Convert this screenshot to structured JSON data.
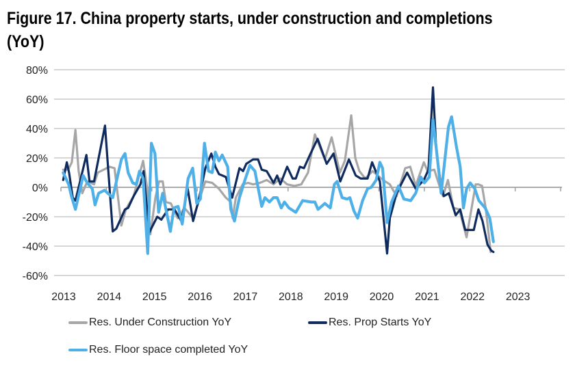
{
  "title_line1": "Figure 17. China property starts, under construction and completions",
  "title_line2": "(YoY)",
  "chart_data": {
    "type": "line",
    "title": "Figure 17. China property starts, under construction and completions (YoY)",
    "xlabel": "",
    "ylabel": "",
    "xlim": [
      2013,
      2024
    ],
    "ylim": [
      -60,
      80
    ],
    "y_ticks": [
      "80%",
      "60%",
      "40%",
      "20%",
      "0%",
      "-20%",
      "-40%",
      "-60%"
    ],
    "y_tick_values": [
      80,
      60,
      40,
      20,
      0,
      -20,
      -40,
      -60
    ],
    "x_ticks": [
      "2013",
      "2014",
      "2015",
      "2016",
      "2017",
      "2018",
      "2019",
      "2020",
      "2021",
      "2022",
      "2023"
    ],
    "x_tick_values": [
      2013,
      2014,
      2015,
      2016,
      2017,
      2018,
      2019,
      2020,
      2021,
      2022,
      2023
    ],
    "grid": "horizontal",
    "legend_position": "bottom",
    "series": [
      {
        "name": "Res. Under Construction YoY",
        "color": "#a6a6a6",
        "x": [
          2013.05,
          2013.16,
          2013.24,
          2013.32,
          2013.39,
          2013.47,
          2013.58,
          2013.73,
          2013.81,
          2014.07,
          2014.18,
          2014.33,
          2014.43,
          2014.6,
          2014.81,
          2014.9,
          2014.97,
          2015.08,
          2015.16,
          2015.24,
          2015.31,
          2015.42,
          2015.57,
          2015.72,
          2015.91,
          2016.06,
          2016.18,
          2016.33,
          2016.48,
          2016.63,
          2016.74,
          2016.78,
          2016.85,
          2017.0,
          2017.12,
          2017.23,
          2017.38,
          2017.53,
          2017.68,
          2017.83,
          2017.98,
          2018.14,
          2018.29,
          2018.44,
          2018.59,
          2018.81,
          2018.96,
          2019.14,
          2019.25,
          2019.39,
          2019.48,
          2019.57,
          2019.7,
          2019.86,
          2020.09,
          2020.24,
          2020.39,
          2020.58,
          2020.69,
          2020.81,
          2020.99,
          2021.07,
          2021.22,
          2021.29,
          2021.41,
          2021.52,
          2021.64,
          2021.77,
          2021.93,
          2022.13,
          2022.19,
          2022.27,
          2022.35,
          2022.46
        ],
        "y": [
          12,
          12,
          17,
          39,
          11,
          -4,
          4,
          2,
          10,
          14,
          13,
          -26,
          -15,
          -6,
          18,
          -1,
          -32,
          -7,
          4,
          4,
          -10,
          -11,
          -21,
          -14,
          -21,
          -7,
          4,
          3,
          -1,
          -7,
          -10,
          -21,
          -7,
          2,
          3,
          2,
          3,
          5,
          2,
          6,
          2,
          1,
          2,
          10,
          36,
          19,
          34,
          10,
          18,
          49,
          20,
          11,
          6,
          11,
          5,
          2,
          -6,
          13,
          14,
          1,
          17,
          11,
          12,
          5,
          -6,
          5,
          -14,
          -15,
          -34,
          2,
          2,
          1,
          -14,
          -44
        ]
      },
      {
        "name": "Res. Prop Starts YoY",
        "color": "#0e2a5e",
        "x": [
          2013.05,
          2013.13,
          2013.18,
          2013.26,
          2013.32,
          2013.43,
          2013.56,
          2013.63,
          2013.73,
          2013.97,
          2014.14,
          2014.22,
          2014.41,
          2014.48,
          2014.6,
          2014.75,
          2014.82,
          2014.94,
          2015.12,
          2015.21,
          2015.36,
          2015.5,
          2015.65,
          2015.79,
          2015.91,
          2016.03,
          2016.18,
          2016.31,
          2016.4,
          2016.48,
          2016.63,
          2016.77,
          2016.93,
          2017.01,
          2017.08,
          2017.23,
          2017.34,
          2017.42,
          2017.53,
          2017.68,
          2017.76,
          2017.83,
          2017.98,
          2018.1,
          2018.17,
          2018.26,
          2018.35,
          2018.51,
          2018.65,
          2018.85,
          2019.0,
          2019.15,
          2019.34,
          2019.49,
          2019.6,
          2019.75,
          2019.85,
          2020.02,
          2020.18,
          2020.24,
          2020.39,
          2020.62,
          2020.81,
          2020.99,
          2021.09,
          2021.19,
          2021.26,
          2021.36,
          2021.43,
          2021.54,
          2021.69,
          2021.79,
          2021.9,
          2022.09,
          2022.19,
          2022.28,
          2022.39,
          2022.47,
          2022.52
        ],
        "y": [
          5,
          17,
          10,
          -7,
          -9,
          5,
          22,
          4,
          4,
          42,
          -30,
          -28,
          -15,
          -14,
          -6,
          2,
          11,
          -31,
          -20,
          -22,
          -15,
          -15,
          -23,
          -1,
          -23,
          -9,
          13,
          23,
          14,
          9,
          7,
          -7,
          13,
          11,
          16,
          19,
          19,
          12,
          11,
          3,
          8,
          2,
          14,
          6,
          6,
          14,
          13,
          24,
          33,
          16,
          23,
          4,
          19,
          8,
          6,
          6,
          17,
          4,
          -45,
          -21,
          -4,
          10,
          -1,
          5,
          12,
          68,
          27,
          2,
          -6,
          -4,
          -19,
          -15,
          -29,
          -29,
          -15,
          -23,
          -39,
          -43,
          -44
        ]
      },
      {
        "name": "Res. Floor space completed YoY",
        "color": "#4fb0e8",
        "x": [
          2013.05,
          2013.17,
          2013.23,
          2013.32,
          2013.49,
          2013.58,
          2013.69,
          2013.75,
          2013.83,
          2013.96,
          2014.03,
          2014.14,
          2014.33,
          2014.41,
          2014.48,
          2014.58,
          2014.66,
          2014.73,
          2014.81,
          2014.91,
          2014.99,
          2015.07,
          2015.15,
          2015.24,
          2015.41,
          2015.49,
          2015.58,
          2015.67,
          2015.8,
          2015.9,
          2015.99,
          2016.07,
          2016.16,
          2016.25,
          2016.33,
          2016.4,
          2016.48,
          2016.55,
          2016.67,
          2016.74,
          2016.82,
          2016.93,
          2017.04,
          2017.16,
          2017.27,
          2017.42,
          2017.49,
          2017.59,
          2017.68,
          2017.76,
          2017.85,
          2017.92,
          2018.02,
          2018.17,
          2018.32,
          2018.51,
          2018.59,
          2018.66,
          2018.81,
          2018.93,
          2019.02,
          2019.08,
          2019.19,
          2019.3,
          2019.36,
          2019.45,
          2019.53,
          2019.64,
          2019.75,
          2019.83,
          2019.94,
          2020.02,
          2020.08,
          2020.18,
          2020.28,
          2020.43,
          2020.55,
          2020.7,
          2020.81,
          2020.92,
          2021.0,
          2021.11,
          2021.19,
          2021.26,
          2021.37,
          2021.53,
          2021.6,
          2021.71,
          2021.79,
          2021.86,
          2021.93,
          2022.01,
          2022.11,
          2022.2,
          2022.34,
          2022.44,
          2022.52
        ],
        "y": [
          10,
          2,
          -6,
          -15,
          8,
          3,
          -1,
          -12,
          -4,
          -2,
          -4,
          -7,
          19,
          23,
          10,
          3,
          2,
          11,
          6,
          -45,
          30,
          23,
          -17,
          -4,
          -30,
          -14,
          -13,
          -25,
          6,
          13,
          -11,
          -8,
          30,
          11,
          10,
          24,
          18,
          22,
          14,
          -15,
          -23,
          -7,
          4,
          15,
          11,
          -13,
          -7,
          -10,
          -7,
          -7,
          -14,
          -10,
          -14,
          -17,
          -9,
          -10,
          -10,
          -15,
          -11,
          -14,
          2,
          4,
          -7,
          -8,
          -7,
          -16,
          -21,
          -9,
          -1,
          0,
          5,
          17,
          13,
          -24,
          -10,
          1,
          -8,
          -9,
          -4,
          7,
          3,
          7,
          46,
          27,
          -4,
          41,
          48,
          27,
          14,
          -14,
          -1,
          3,
          -1,
          -9,
          -14,
          -21,
          -37
        ]
      }
    ]
  },
  "legend": [
    {
      "label": "Res. Under Construction YoY",
      "color": "#a6a6a6"
    },
    {
      "label": "Res. Prop Starts YoY",
      "color": "#0e2a5e"
    },
    {
      "label": "Res. Floor space completed YoY",
      "color": "#4fb0e8"
    }
  ]
}
